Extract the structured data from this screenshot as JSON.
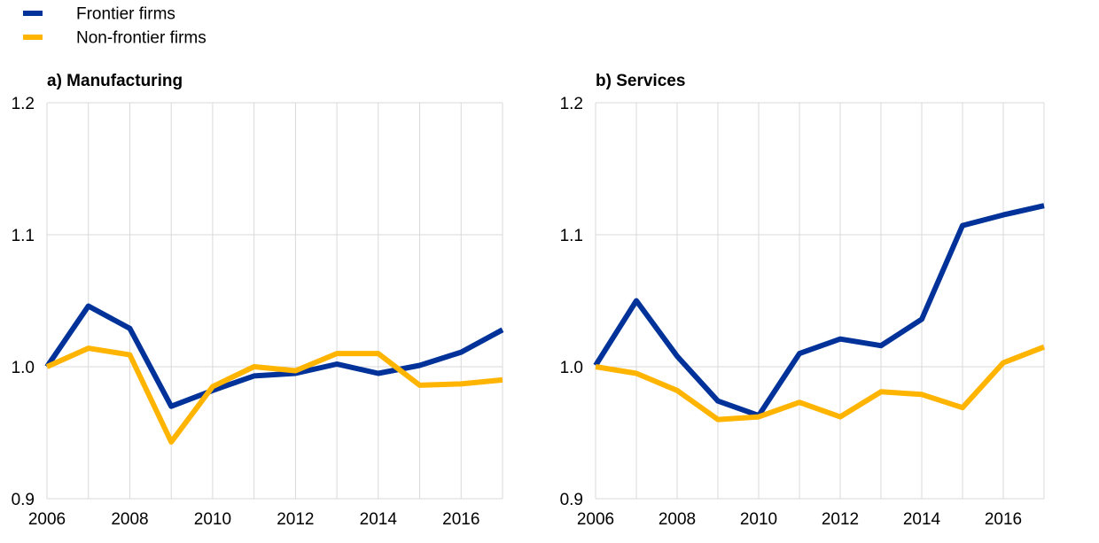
{
  "legend": [
    {
      "label": "Frontier firms",
      "color": "#003299"
    },
    {
      "label": "Non-frontier firms",
      "color": "#FFB400"
    }
  ],
  "chart_data": [
    {
      "type": "line",
      "title": "a) Manufacturing",
      "x": [
        2006,
        2007,
        2008,
        2009,
        2010,
        2011,
        2012,
        2013,
        2014,
        2015,
        2016,
        2017
      ],
      "xticks": [
        "2006",
        "2008",
        "2010",
        "2012",
        "2014",
        "2016"
      ],
      "yticks": [
        "0.9",
        "1.0",
        "1.1",
        "1.2"
      ],
      "xlim": [
        2006,
        2017
      ],
      "ylim": [
        0.9,
        1.2
      ],
      "grid": true,
      "series": [
        {
          "name": "Frontier firms",
          "color": "#003299",
          "values": [
            1.0,
            1.046,
            1.029,
            0.97,
            0.982,
            0.993,
            0.995,
            1.002,
            0.995,
            1.001,
            1.011,
            1.028
          ]
        },
        {
          "name": "Non-frontier firms",
          "color": "#FFB400",
          "values": [
            1.0,
            1.014,
            1.009,
            0.943,
            0.985,
            1.0,
            0.997,
            1.01,
            1.01,
            0.986,
            0.987,
            0.99
          ]
        }
      ]
    },
    {
      "type": "line",
      "title": "b) Services",
      "x": [
        2006,
        2007,
        2008,
        2009,
        2010,
        2011,
        2012,
        2013,
        2014,
        2015,
        2016,
        2017
      ],
      "xticks": [
        "2006",
        "2008",
        "2010",
        "2012",
        "2014",
        "2016"
      ],
      "yticks": [
        "0.9",
        "1.0",
        "1.1",
        "1.2"
      ],
      "xlim": [
        2006,
        2017
      ],
      "ylim": [
        0.9,
        1.2
      ],
      "grid": true,
      "series": [
        {
          "name": "Frontier firms",
          "color": "#003299",
          "values": [
            1.001,
            1.05,
            1.008,
            0.974,
            0.963,
            1.01,
            1.021,
            1.016,
            1.036,
            1.107,
            1.115,
            1.122
          ]
        },
        {
          "name": "Non-frontier firms",
          "color": "#FFB400",
          "values": [
            1.0,
            0.995,
            0.982,
            0.96,
            0.962,
            0.973,
            0.962,
            0.981,
            0.979,
            0.969,
            1.003,
            1.015
          ]
        }
      ]
    }
  ]
}
